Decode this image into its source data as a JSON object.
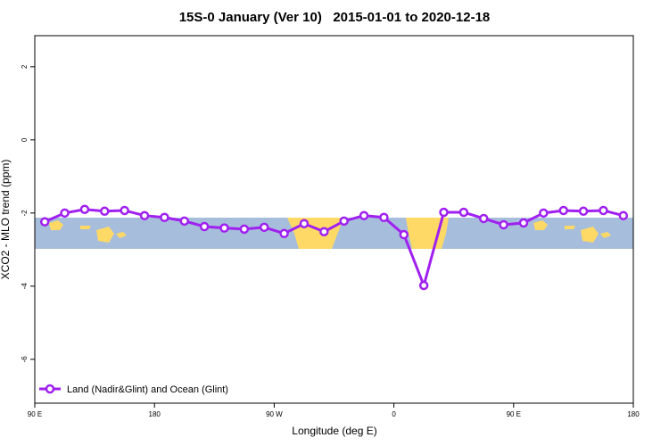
{
  "chart_data": {
    "type": "line",
    "title": "15S-0 January (Ver 10)   2015-01-01 to 2020-12-18",
    "x_label": "Longitude (deg E)",
    "y_label": "XCO2 - MLO trend (ppm)",
    "x": [
      97.5,
      112.5,
      127.5,
      142.5,
      157.5,
      172.5,
      187.5,
      202.5,
      217.5,
      232.5,
      247.5,
      262.5,
      277.5,
      292.5,
      307.5,
      322.5,
      337.5,
      352.5,
      367.5,
      382.5,
      397.5,
      412.5,
      427.5,
      442.5,
      457.5,
      472.5,
      487.5,
      502.5,
      517.5,
      532.5
    ],
    "series": [
      {
        "name": "Land (Nadir&Glint) and Ocean (Glint)",
        "color": "#a020f0",
        "values": [
          -2.24,
          -2.0,
          -1.9,
          -1.95,
          -1.93,
          -2.07,
          -2.12,
          -2.22,
          -2.37,
          -2.41,
          -2.44,
          -2.39,
          -2.56,
          -2.29,
          -2.51,
          -2.22,
          -2.07,
          -2.12,
          -2.59,
          -3.98,
          -1.98,
          -1.98,
          -2.15,
          -2.32,
          -2.27,
          -2.0,
          -1.93,
          -1.95,
          -1.93,
          -2.07
        ]
      }
    ],
    "xlim": [
      90,
      540
    ],
    "xticks": [
      {
        "value": 90,
        "label": "90 E"
      },
      {
        "value": 180,
        "label": "180"
      },
      {
        "value": 270,
        "label": "90 W"
      },
      {
        "value": 360,
        "label": "0"
      },
      {
        "value": 450,
        "label": "90 E"
      },
      {
        "value": 540,
        "label": "180"
      }
    ],
    "ylim": [
      -7.2,
      2.85
    ],
    "yticks": [
      -6,
      -4,
      -2,
      0,
      2
    ],
    "legend": "bottom-left"
  }
}
